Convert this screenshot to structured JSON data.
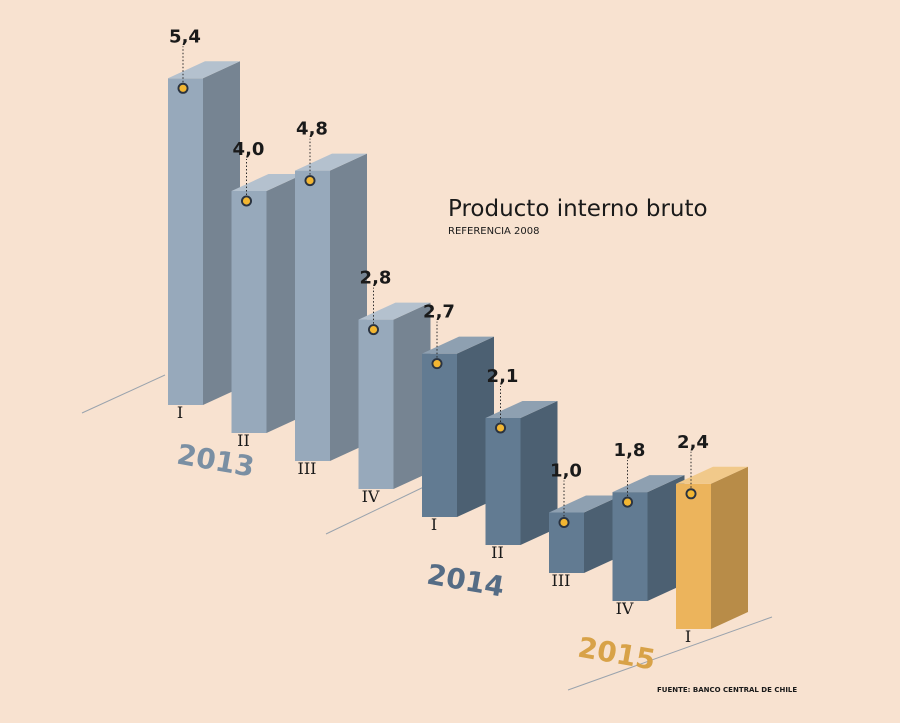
{
  "chart_data": {
    "type": "bar",
    "title": "Producto interno bruto",
    "subtitle": "REFERENCIA 2008",
    "source": "FUENTE: BANCO CENTRAL DE CHILE",
    "categories": [
      "I",
      "II",
      "III",
      "IV",
      "I",
      "II",
      "III",
      "IV",
      "I"
    ],
    "years": [
      "2013",
      "2014",
      "2015"
    ],
    "year_of_bar": [
      0,
      0,
      0,
      0,
      1,
      1,
      1,
      1,
      2
    ],
    "values": [
      5.4,
      4.0,
      4.8,
      2.8,
      2.7,
      2.1,
      1.0,
      1.8,
      2.4
    ],
    "value_labels": [
      "5,4",
      "4,0",
      "4,8",
      "2,8",
      "2,7",
      "2,1",
      "1,0",
      "1,8",
      "2,4"
    ],
    "colors": {
      "2013": "#97a9bb",
      "2014": "#627b92",
      "2015": "#ecb45c",
      "year_2013_text": "#7a8fa3",
      "year_2014_text": "#556c85",
      "year_2015_text": "#d8a248",
      "marker": "#f2b632"
    }
  }
}
